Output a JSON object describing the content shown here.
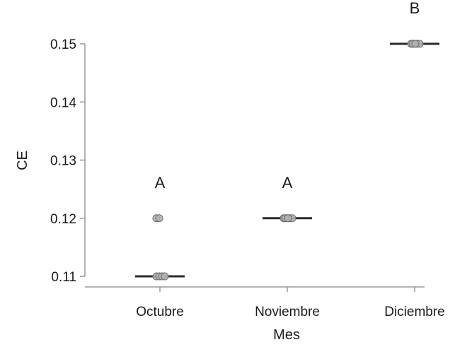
{
  "chart_data": {
    "type": "scatter",
    "xlabel": "Mes",
    "ylabel": "CE",
    "categories": [
      "Octubre",
      "Noviembre",
      "Diciembre"
    ],
    "yticks": [
      "0.11",
      "0.12",
      "0.13",
      "0.14",
      "0.15"
    ],
    "ylim": [
      0.11,
      0.15
    ],
    "series": [
      {
        "category": "Octubre",
        "points": [
          0.11,
          0.11,
          0.11,
          0.11,
          0.12,
          0.12
        ],
        "median": 0.11,
        "group_letter": "A"
      },
      {
        "category": "Noviembre",
        "points": [
          0.12,
          0.12,
          0.12,
          0.12,
          0.12,
          0.12
        ],
        "median": 0.12,
        "group_letter": "A"
      },
      {
        "category": "Diciembre",
        "points": [
          0.15,
          0.15,
          0.15,
          0.15,
          0.15,
          0.15
        ],
        "median": 0.15,
        "group_letter": "B"
      }
    ],
    "colors": {
      "point_fill": "#b3b3b3",
      "point_stroke": "#6e6e6e",
      "median_line": "#2b2b2b",
      "axis": "#999999"
    }
  }
}
